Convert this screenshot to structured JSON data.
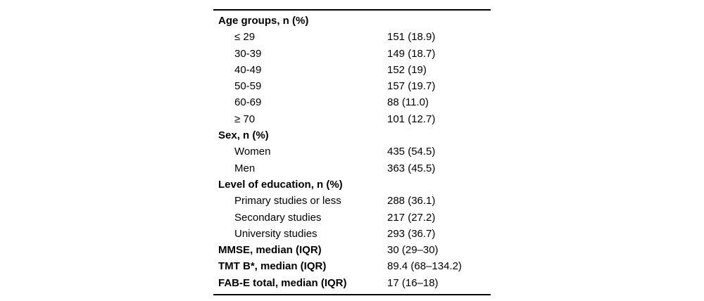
{
  "table": {
    "rows": [
      {
        "label": "Age groups, n (%)",
        "value": "",
        "style": "header"
      },
      {
        "label": "≤ 29",
        "value": "151 (18.9)",
        "style": "sub"
      },
      {
        "label": "30-39",
        "value": "149 (18.7)",
        "style": "sub"
      },
      {
        "label": "40-49",
        "value": "152 (19)",
        "style": "sub"
      },
      {
        "label": "50-59",
        "value": "157 (19.7)",
        "style": "sub"
      },
      {
        "label": "60-69",
        "value": "88 (11.0)",
        "style": "sub"
      },
      {
        "label": "≥ 70",
        "value": "101 (12.7)",
        "style": "sub"
      },
      {
        "label": "Sex, n (%)",
        "value": "",
        "style": "header"
      },
      {
        "label": "Women",
        "value": "435 (54.5)",
        "style": "sub"
      },
      {
        "label": "Men",
        "value": "363 (45.5)",
        "style": "sub"
      },
      {
        "label": "Level of education, n (%)",
        "value": "",
        "style": "header"
      },
      {
        "label": "Primary studies or less",
        "value": "288 (36.1)",
        "style": "sub"
      },
      {
        "label": "Secondary studies",
        "value": "217 (27.2)",
        "style": "sub"
      },
      {
        "label": "University studies",
        "value": "293 (36.7)",
        "style": "sub"
      },
      {
        "label": "MMSE, median (IQR)",
        "value": "30 (29–30)",
        "style": "boldrow"
      },
      {
        "label": "TMT B*, median (IQR)",
        "value": "89.4 (68–134.2)",
        "style": "boldrow"
      },
      {
        "label": "FAB-E total, median (IQR)",
        "value": "17 (16–18)",
        "style": "boldrow"
      }
    ],
    "rules_color": "#000000",
    "text_color": "#000000"
  }
}
